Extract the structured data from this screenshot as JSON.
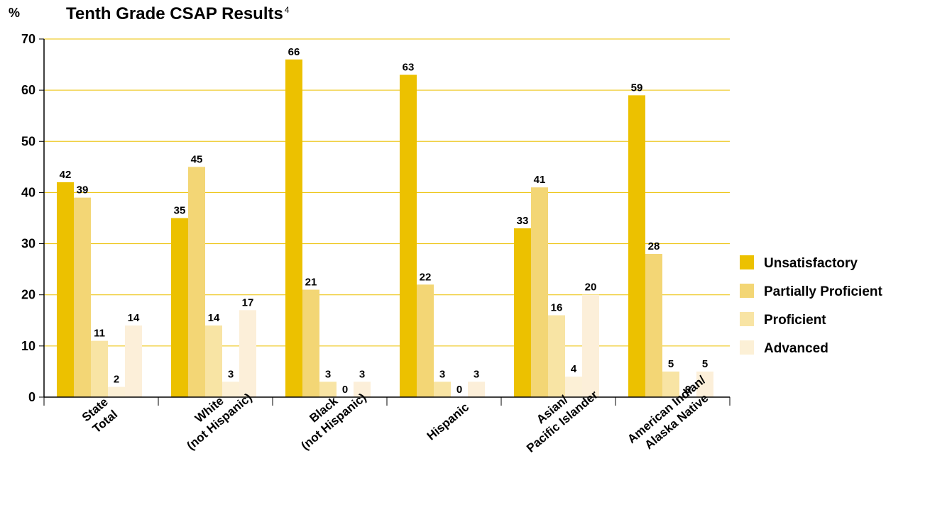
{
  "chart_data": {
    "type": "bar",
    "title": "Tenth Grade CSAP Results",
    "title_superscript": "4",
    "ylabel": "%",
    "ylim": [
      0,
      70
    ],
    "yticks": [
      0,
      10,
      20,
      30,
      40,
      50,
      60,
      70
    ],
    "grid": true,
    "legend_position": "right",
    "categories": [
      [
        "State",
        "Total"
      ],
      [
        "White",
        "(not Hispanic)"
      ],
      [
        "Black",
        "(not Hispanic)"
      ],
      [
        "Hispanic"
      ],
      [
        "Asian/",
        "Pacific Islander"
      ],
      [
        "American Indian/",
        "Alaska Native"
      ]
    ],
    "series": [
      {
        "name": "Unsatisfactory",
        "color": "#ecc100",
        "values": [
          42,
          35,
          66,
          63,
          33,
          59
        ]
      },
      {
        "name": "Partially Proficient",
        "color": "#f3d675",
        "values": [
          39,
          45,
          21,
          22,
          41,
          28
        ]
      },
      {
        "name": "Proficient",
        "color": "#f8e4a4",
        "values": [
          11,
          14,
          3,
          3,
          16,
          5
        ]
      },
      {
        "name": "Advanced",
        "color": "#fcf0d6",
        "values": [
          2,
          3,
          0,
          0,
          4,
          0
        ]
      },
      {
        "name": "",
        "color": "#fcefd9",
        "values": [
          14,
          17,
          3,
          3,
          20,
          5
        ]
      }
    ],
    "legend": [
      "Unsatisfactory",
      "Partially Proficient",
      "Proficient",
      "Advanced"
    ],
    "legend_colors": [
      "#ecc100",
      "#f3d675",
      "#f8e4a4",
      "#fcf0d6"
    ],
    "gridline_color": "#ecc100",
    "axis_color": "#000000"
  }
}
